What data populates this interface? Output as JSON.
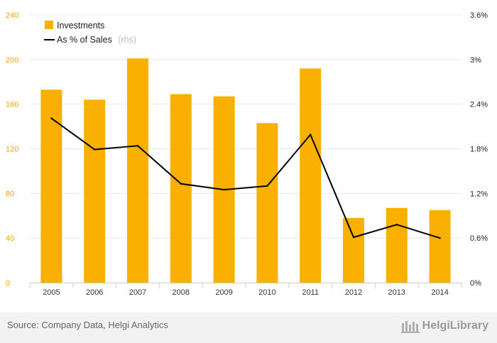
{
  "chart_data": {
    "type": "bar",
    "categories": [
      "2005",
      "2006",
      "2007",
      "2008",
      "2009",
      "2010",
      "2011",
      "2012",
      "2013",
      "2014"
    ],
    "series": [
      {
        "name": "Investments",
        "type": "bar",
        "axis": "left",
        "color": "#f9b000",
        "values": [
          173,
          164,
          201,
          169,
          167,
          143,
          192,
          58,
          67,
          65
        ]
      },
      {
        "name": "As % of Sales",
        "type": "line",
        "axis": "right",
        "color": "#000000",
        "values": [
          2.21,
          1.79,
          1.84,
          1.33,
          1.25,
          1.3,
          1.99,
          0.61,
          0.78,
          0.6
        ]
      }
    ],
    "y_left": {
      "ylim": [
        0,
        240
      ],
      "ticks": [
        "0",
        "40",
        "80",
        "120",
        "160",
        "200",
        "240"
      ]
    },
    "y_right": {
      "ylim": [
        0,
        3.6
      ],
      "ticks": [
        "0%",
        "0.6%",
        "1.2%",
        "1.8%",
        "2.4%",
        "3%",
        "3.6%"
      ]
    },
    "legend": {
      "position": "top-left",
      "rhs_suffix": "(rhs)"
    },
    "grid": true
  },
  "footer": {
    "source": "Source: Company Data, Helgi Analytics",
    "brand": "HelgiLibrary"
  }
}
